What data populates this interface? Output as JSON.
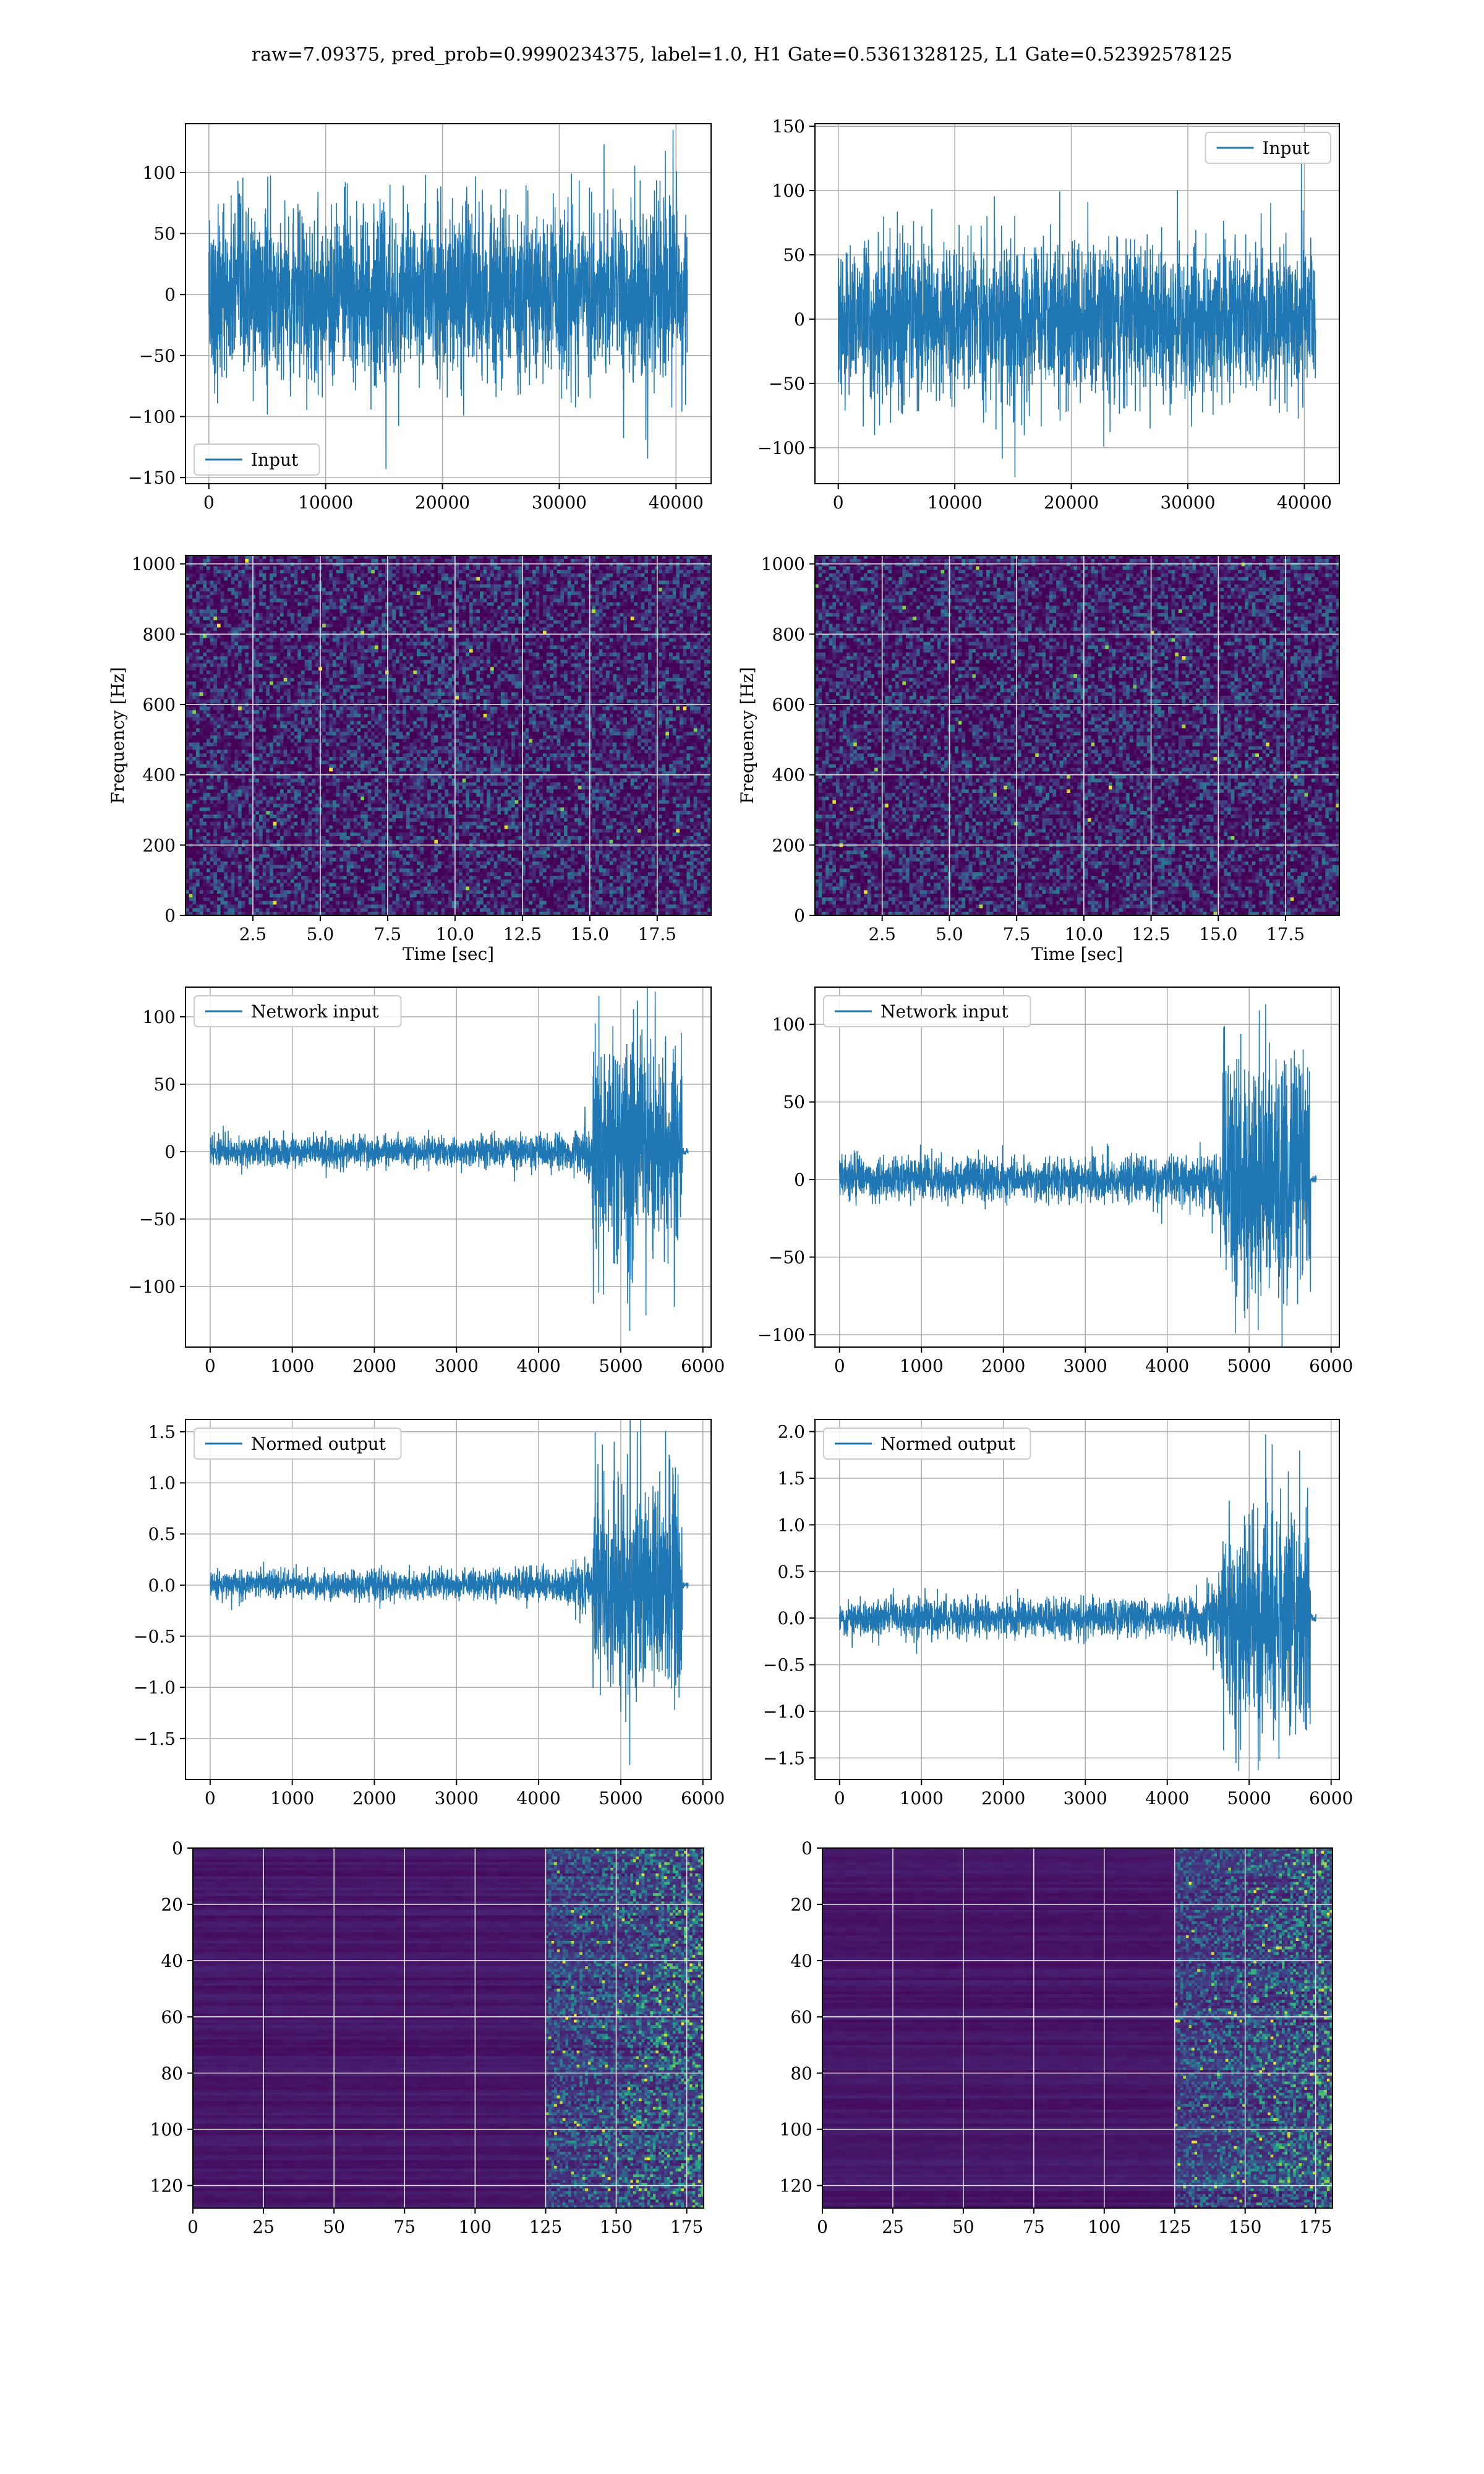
{
  "figure": {
    "title": "raw=7.09375, pred_prob=0.9990234375, label=1.0, H1 Gate=0.5361328125, L1 Gate=0.52392578125"
  },
  "colors": {
    "line": "#1f77b4",
    "grid": "#b0b0b0",
    "viridis_low": "#440154",
    "viridis_mid": "#21918c",
    "viridis_high": "#fde725"
  },
  "chart_data": [
    {
      "id": "row1-left",
      "type": "line",
      "name": "Input",
      "legend": "lower-left",
      "xlim": [
        -2000,
        43000
      ],
      "ylim": [
        -155,
        140
      ],
      "xticks": [
        0,
        10000,
        20000,
        30000,
        40000
      ],
      "yticks": [
        -150,
        -100,
        -50,
        0,
        50,
        100
      ],
      "grid": true,
      "x_range": [
        0,
        40960
      ],
      "envelope": "stationary",
      "band": 65,
      "peak": 135,
      "trough": -143
    },
    {
      "id": "row1-right",
      "type": "line",
      "name": "Input",
      "legend": "upper-right",
      "xlim": [
        -2000,
        43000
      ],
      "ylim": [
        -128,
        152
      ],
      "xticks": [
        0,
        10000,
        20000,
        30000,
        40000
      ],
      "yticks": [
        -100,
        -50,
        0,
        50,
        100,
        150
      ],
      "grid": true,
      "x_range": [
        0,
        40960
      ],
      "envelope": "stationary",
      "band": 55,
      "peak": 142,
      "trough": -123
    },
    {
      "id": "row2-left",
      "type": "heatmap",
      "colormap": "viridis",
      "xlabel": "Time [sec]",
      "ylabel": "Frequency [Hz]",
      "xlim": [
        0,
        19.5
      ],
      "ylim": [
        0,
        1024
      ],
      "xticks": [
        2.5,
        5.0,
        7.5,
        10.0,
        12.5,
        15.0,
        17.5
      ],
      "yticks": [
        0,
        200,
        400,
        600,
        800,
        1000
      ],
      "grid": true
    },
    {
      "id": "row2-right",
      "type": "heatmap",
      "colormap": "viridis",
      "xlabel": "Time [sec]",
      "ylabel": "Frequency [Hz]",
      "xlim": [
        0,
        19.5
      ],
      "ylim": [
        0,
        1024
      ],
      "xticks": [
        2.5,
        5.0,
        7.5,
        10.0,
        12.5,
        15.0,
        17.5
      ],
      "yticks": [
        0,
        200,
        400,
        600,
        800,
        1000
      ],
      "grid": true
    },
    {
      "id": "row3-left",
      "type": "line",
      "name": "Network input",
      "legend": "upper-left",
      "xlim": [
        -300,
        6100
      ],
      "ylim": [
        -145,
        122
      ],
      "xticks": [
        0,
        1000,
        2000,
        3000,
        4000,
        5000,
        6000
      ],
      "yticks": [
        -100,
        -50,
        0,
        50,
        100
      ],
      "grid": true,
      "x_range": [
        0,
        5820
      ],
      "envelope": "chirp",
      "base": 12,
      "burst_start": 4650,
      "burst_end": 5750,
      "burst_amp": 95,
      "peak": 112,
      "trough": -133
    },
    {
      "id": "row3-right",
      "type": "line",
      "name": "Network input",
      "legend": "upper-left",
      "xlim": [
        -300,
        6100
      ],
      "ylim": [
        -108,
        124
      ],
      "xticks": [
        0,
        1000,
        2000,
        3000,
        4000,
        5000,
        6000
      ],
      "yticks": [
        -100,
        -50,
        0,
        50,
        100
      ],
      "grid": true,
      "x_range": [
        0,
        5820
      ],
      "envelope": "chirp",
      "base": 15,
      "burst_start": 4650,
      "burst_end": 5750,
      "burst_amp": 85,
      "peak": 113,
      "trough": -97
    },
    {
      "id": "row4-left",
      "type": "line",
      "name": "Normed output",
      "legend": "upper-left",
      "xlim": [
        -300,
        6100
      ],
      "ylim": [
        -1.9,
        1.62
      ],
      "xticks": [
        0,
        1000,
        2000,
        3000,
        4000,
        5000,
        6000
      ],
      "yticks": [
        -1.5,
        -1.0,
        -0.5,
        0.0,
        0.5,
        1.0,
        1.5
      ],
      "grid": true,
      "x_range": [
        0,
        5820
      ],
      "envelope": "chirp",
      "base": 0.15,
      "burst_start": 4650,
      "burst_end": 5750,
      "burst_amp": 1.2,
      "peak": 1.5,
      "trough": -1.76
    },
    {
      "id": "row4-right",
      "type": "line",
      "name": "Normed output",
      "legend": "upper-left",
      "xlim": [
        -300,
        6100
      ],
      "ylim": [
        -1.73,
        2.13
      ],
      "xticks": [
        0,
        1000,
        2000,
        3000,
        4000,
        5000,
        6000
      ],
      "yticks": [
        -1.5,
        -1.0,
        -0.5,
        0.0,
        0.5,
        1.0,
        1.5,
        2.0
      ],
      "grid": true,
      "x_range": [
        0,
        5820
      ],
      "envelope": "chirp",
      "base": 0.22,
      "burst_start": 4650,
      "burst_end": 5750,
      "burst_amp": 1.3,
      "peak": 1.97,
      "trough": -1.63
    },
    {
      "id": "row5-left",
      "type": "heatmap",
      "colormap": "viridis",
      "xlim": [
        0,
        181
      ],
      "ylim": [
        128,
        0
      ],
      "inverted_y": true,
      "xticks": [
        0,
        25,
        50,
        75,
        100,
        125,
        150,
        175
      ],
      "yticks": [
        0,
        20,
        40,
        60,
        80,
        100,
        120
      ],
      "grid": true,
      "onset": 125
    },
    {
      "id": "row5-right",
      "type": "heatmap",
      "colormap": "viridis",
      "xlim": [
        0,
        181
      ],
      "ylim": [
        128,
        0
      ],
      "inverted_y": true,
      "xticks": [
        0,
        25,
        50,
        75,
        100,
        125,
        150,
        175
      ],
      "yticks": [
        0,
        20,
        40,
        60,
        80,
        100,
        120
      ],
      "grid": true,
      "onset": 125
    }
  ]
}
